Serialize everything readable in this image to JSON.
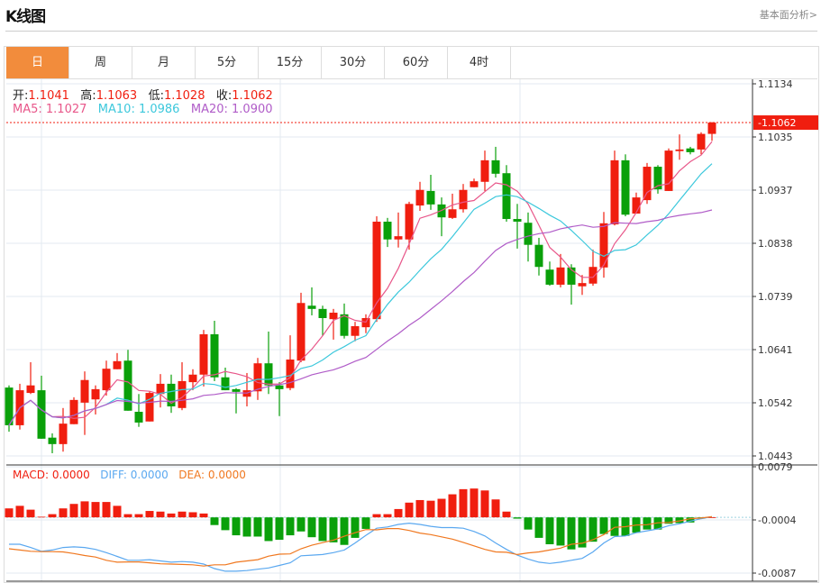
{
  "header": {
    "title": "K线图",
    "more_link": "基本面分析>"
  },
  "tabs": [
    {
      "label": "日",
      "active": true
    },
    {
      "label": "周"
    },
    {
      "label": "月"
    },
    {
      "label": "5分"
    },
    {
      "label": "15分"
    },
    {
      "label": "30分"
    },
    {
      "label": "60分"
    },
    {
      "label": "4时"
    }
  ],
  "ohlc_info": {
    "open_label": "开:",
    "open": "1.1041",
    "high_label": "高:",
    "high": "1.1063",
    "low_label": "低:",
    "low": "1.1028",
    "close_label": "收:",
    "close": "1.1062"
  },
  "ma_info": {
    "ma5": "MA5: 1.1027",
    "ma10": "MA10: 1.0986",
    "ma20": "MA20: 1.0900"
  },
  "macd_info": {
    "macd": "MACD: 0.0000",
    "diff": "DIFF: 0.0000",
    "dea": "DEA: 0.0000"
  },
  "colors": {
    "up": "#f01e0f",
    "down": "#0aa00a",
    "ma5": "#e8578a",
    "ma10": "#3cc8dc",
    "ma20": "#b05cc8",
    "diff": "#5aa8f0",
    "dea": "#f07820",
    "active_tab": "#f28c3c"
  },
  "chart_data": {
    "type": "candlestick",
    "price_axis": {
      "ticks": [
        "1.1134",
        "1.1035",
        "1.0937",
        "1.0838",
        "1.0739",
        "1.0641",
        "1.0542",
        "1.0443"
      ],
      "range": [
        1.0443,
        1.1134
      ]
    },
    "current_price": "1.1062",
    "candles": [
      [
        1.057,
        1.0574,
        1.0488,
        1.05
      ],
      [
        1.05,
        1.0577,
        1.0492,
        1.0565
      ],
      [
        1.056,
        1.0617,
        1.0558,
        1.0574
      ],
      [
        1.0565,
        1.0592,
        1.0475,
        1.0475
      ],
      [
        1.0477,
        1.0485,
        1.0448,
        1.0465
      ],
      [
        1.0465,
        1.0532,
        1.0451,
        1.0503
      ],
      [
        1.0502,
        1.0552,
        1.0502,
        1.0547
      ],
      [
        1.0542,
        1.06,
        1.0482,
        1.0584
      ],
      [
        1.0548,
        1.0574,
        1.052,
        1.0567
      ],
      [
        1.0565,
        1.062,
        1.0555,
        1.0605
      ],
      [
        1.0604,
        1.0634,
        1.0604,
        1.0619
      ],
      [
        1.062,
        1.064,
        1.0527,
        1.0527
      ],
      [
        1.0525,
        1.0558,
        1.0497,
        1.0505
      ],
      [
        1.0507,
        1.0563,
        1.0507,
        1.056
      ],
      [
        1.0558,
        1.0595,
        1.0533,
        1.0577
      ],
      [
        1.0577,
        1.0594,
        1.0523,
        1.0535
      ],
      [
        1.0532,
        1.0617,
        1.0528,
        1.0582
      ],
      [
        1.058,
        1.0604,
        1.0565,
        1.0594
      ],
      [
        1.0594,
        1.0677,
        1.0572,
        1.0669
      ],
      [
        1.0669,
        1.0694,
        1.0582,
        1.0589
      ],
      [
        1.0589,
        1.0607,
        1.0565,
        1.0565
      ],
      [
        1.0567,
        1.0569,
        1.0522,
        1.0562
      ],
      [
        1.0553,
        1.0597,
        1.0535,
        1.0565
      ],
      [
        1.0563,
        1.0625,
        1.0547,
        1.0615
      ],
      [
        1.0615,
        1.0674,
        1.0558,
        1.0574
      ],
      [
        1.0574,
        1.058,
        1.0517,
        1.0567
      ],
      [
        1.0569,
        1.0667,
        1.0565,
        1.0622
      ],
      [
        1.062,
        1.0746,
        1.0617,
        1.0727
      ],
      [
        1.0722,
        1.0756,
        1.0704,
        1.0716
      ],
      [
        1.0716,
        1.0722,
        1.0666,
        1.0699
      ],
      [
        1.0697,
        1.0716,
        1.0659,
        1.0709
      ],
      [
        1.0706,
        1.0726,
        1.0661,
        1.0666
      ],
      [
        1.0666,
        1.0692,
        1.0656,
        1.0684
      ],
      [
        1.0682,
        1.0706,
        1.0671,
        1.0699
      ],
      [
        1.0697,
        1.0888,
        1.0692,
        1.0878
      ],
      [
        1.0878,
        1.0885,
        1.0831,
        1.0845
      ],
      [
        1.0845,
        1.0895,
        1.083,
        1.0851
      ],
      [
        1.0845,
        1.0915,
        1.0826,
        1.0911
      ],
      [
        1.0908,
        1.0952,
        1.0898,
        1.0937
      ],
      [
        1.0935,
        1.0965,
        1.09,
        1.091
      ],
      [
        1.091,
        1.0923,
        1.0851,
        1.0886
      ],
      [
        1.0885,
        1.093,
        1.0883,
        1.0901
      ],
      [
        1.0901,
        1.0948,
        1.0895,
        1.0937
      ],
      [
        1.0942,
        1.0958,
        1.0942,
        1.0953
      ],
      [
        1.0952,
        1.101,
        1.0935,
        1.0992
      ],
      [
        1.0992,
        1.1017,
        1.096,
        1.0967
      ],
      [
        1.0968,
        1.0983,
        1.0878,
        1.0883
      ],
      [
        1.0883,
        1.0911,
        1.0828,
        1.0878
      ],
      [
        1.0876,
        1.0895,
        1.0804,
        1.0835
      ],
      [
        1.0835,
        1.0848,
        1.0778,
        1.0794
      ],
      [
        1.0789,
        1.0804,
        1.0759,
        1.0761
      ],
      [
        1.0761,
        1.0818,
        1.0756,
        1.0793
      ],
      [
        1.0793,
        1.0799,
        1.0724,
        1.0761
      ],
      [
        1.0758,
        1.0779,
        1.0742,
        1.0764
      ],
      [
        1.0763,
        1.0826,
        1.0759,
        1.0794
      ],
      [
        1.0793,
        1.0896,
        1.0774,
        1.0875
      ],
      [
        1.0873,
        1.101,
        1.0871,
        1.0992
      ],
      [
        1.0992,
        1.1003,
        1.0888,
        1.0891
      ],
      [
        1.0893,
        1.0932,
        1.0893,
        1.0923
      ],
      [
        1.0918,
        1.0987,
        1.0911,
        1.098
      ],
      [
        1.098,
        1.0983,
        1.093,
        1.0938
      ],
      [
        1.0935,
        1.1014,
        1.0935,
        1.101
      ],
      [
        1.1009,
        1.104,
        1.0993,
        1.1012
      ],
      [
        1.1014,
        1.1017,
        1.1003,
        1.1007
      ],
      [
        1.1012,
        1.1044,
        1.1003,
        1.1041
      ],
      [
        1.1041,
        1.1063,
        1.1028,
        1.1062
      ]
    ],
    "macd_axis": {
      "ticks": [
        "0.0079",
        "-0.0004",
        "-0.0087"
      ],
      "range": [
        -0.0087,
        0.0079
      ]
    },
    "macd_hist": [
      0.0014,
      0.0018,
      0.0012,
      0.0001,
      0.0005,
      0.0014,
      0.0021,
      0.0025,
      0.0024,
      0.0024,
      0.0018,
      0.0005,
      0.0005,
      0.001,
      0.0009,
      0.0006,
      0.0009,
      0.0008,
      0.0006,
      -0.0012,
      -0.002,
      -0.0028,
      -0.003,
      -0.003,
      -0.0037,
      -0.0035,
      -0.0028,
      -0.0022,
      -0.0031,
      -0.0037,
      -0.0039,
      -0.0043,
      -0.0032,
      -0.0018,
      0.0005,
      0.0005,
      0.0013,
      0.0023,
      0.0027,
      0.0026,
      0.0029,
      0.0036,
      0.0044,
      0.0045,
      0.0042,
      0.0028,
      0.0009,
      -0.0002,
      -0.0019,
      -0.0032,
      -0.0042,
      -0.0044,
      -0.005,
      -0.0047,
      -0.0038,
      -0.0026,
      -0.0029,
      -0.0029,
      -0.0024,
      -0.0019,
      -0.0019,
      -0.001,
      -0.0009,
      -0.0008,
      -0.0002,
      0.0
    ],
    "diff": [
      -0.0042,
      -0.0042,
      -0.0047,
      -0.0053,
      -0.0051,
      -0.0047,
      -0.0046,
      -0.0047,
      -0.005,
      -0.0055,
      -0.0061,
      -0.0067,
      -0.0067,
      -0.0066,
      -0.0068,
      -0.007,
      -0.0069,
      -0.007,
      -0.0073,
      -0.008,
      -0.0084,
      -0.0084,
      -0.0083,
      -0.0081,
      -0.0079,
      -0.0075,
      -0.0071,
      -0.006,
      -0.0059,
      -0.0058,
      -0.0055,
      -0.0051,
      -0.004,
      -0.0028,
      -0.0017,
      -0.0015,
      -0.0011,
      -0.0009,
      -0.0011,
      -0.0014,
      -0.0016,
      -0.0016,
      -0.0017,
      -0.0022,
      -0.0029,
      -0.004,
      -0.005,
      -0.0059,
      -0.0065,
      -0.007,
      -0.0072,
      -0.007,
      -0.0067,
      -0.0064,
      -0.0054,
      -0.004,
      -0.003,
      -0.0029,
      -0.0024,
      -0.0021,
      -0.0018,
      -0.0013,
      -0.001,
      -0.0006,
      -0.0002,
      0.0001
    ]
  }
}
